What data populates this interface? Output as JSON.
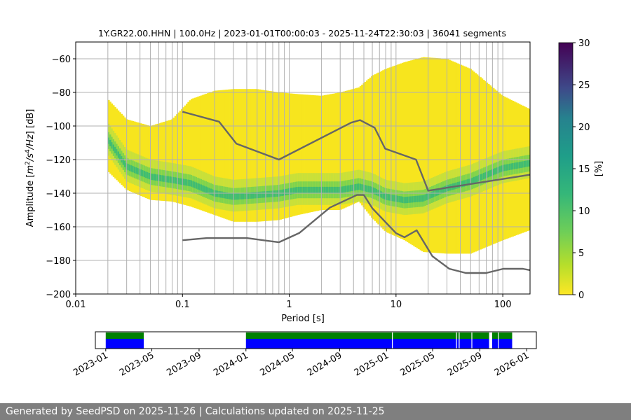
{
  "chart_data": [
    {
      "type": "heatmap",
      "title": "1Y.GR22.00.HHN | 100.0Hz | 2023-01-01T00:00:03 - 2025-11-24T22:30:03 | 36041 segments",
      "xlabel": "Period [s]",
      "ylabel_parts": [
        "Amplitude [",
        "m",
        "2",
        "/",
        "s",
        "4",
        "/",
        "Hz",
        "] [dB]"
      ],
      "xscale": "log",
      "xlim": [
        0.01,
        180
      ],
      "ylim": [
        -200,
        -50
      ],
      "x_ticks": [
        {
          "v": 0.01,
          "label": "0.01"
        },
        {
          "v": 0.1,
          "label": "0.1"
        },
        {
          "v": 1,
          "label": "1"
        },
        {
          "v": 10,
          "label": "10"
        },
        {
          "v": 100,
          "label": "100"
        }
      ],
      "y_ticks": [
        {
          "v": -60,
          "label": "−60"
        },
        {
          "v": -80,
          "label": "−80"
        },
        {
          "v": -100,
          "label": "−100"
        },
        {
          "v": -120,
          "label": "−120"
        },
        {
          "v": -140,
          "label": "−140"
        },
        {
          "v": -160,
          "label": "−160"
        },
        {
          "v": -180,
          "label": "−180"
        },
        {
          "v": -200,
          "label": "−200"
        }
      ],
      "grid": true,
      "colormap": "viridis",
      "colorbar": {
        "label": "[%]",
        "range": [
          0,
          30
        ],
        "ticks": [
          {
            "v": 0,
            "label": "0"
          },
          {
            "v": 5,
            "label": "5"
          },
          {
            "v": 10,
            "label": "10"
          },
          {
            "v": 15,
            "label": "15"
          },
          {
            "v": 20,
            "label": "20"
          },
          {
            "v": 25,
            "label": "25"
          },
          {
            "v": 30,
            "label": "30"
          }
        ]
      },
      "psd_envelope": {
        "period": [
          0.02,
          0.03,
          0.05,
          0.08,
          0.12,
          0.2,
          0.3,
          0.5,
          0.8,
          1.2,
          2,
          3,
          4.5,
          6,
          8,
          12,
          18,
          30,
          50,
          100,
          180
        ],
        "top": [
          -84,
          -96,
          -100,
          -96,
          -84,
          -79,
          -78,
          -78,
          -80,
          -81,
          -82,
          -80,
          -77,
          -70,
          -66,
          -62,
          -59,
          -60,
          -66,
          -82,
          -90
        ],
        "bottom": [
          -127,
          -138,
          -144,
          -145,
          -148,
          -153,
          -157,
          -157,
          -156,
          -153,
          -150,
          -150,
          -145,
          -155,
          -163,
          -168,
          -175,
          -176,
          -176,
          -168,
          -162
        ],
        "mode": [
          -108,
          -124,
          -130,
          -132,
          -134,
          -140,
          -142,
          -141,
          -140,
          -138,
          -138,
          -138,
          -136,
          -138,
          -142,
          -144,
          -143,
          -137,
          -133,
          -125,
          -122
        ]
      },
      "noise_models": [
        {
          "period": [
            0.1,
            0.17,
            0.22,
            0.4,
            0.8,
            1.24,
            2.4,
            4.3,
            5,
            6,
            10,
            12,
            15.6,
            21.9,
            31.6,
            45,
            70,
            101,
            154,
            180
          ],
          "values": [
            -168,
            -166.7,
            -166.7,
            -166.7,
            -169.2,
            -163.7,
            -148.6,
            -141.1,
            -141.1,
            -149,
            -163.8,
            -166.2,
            -162.1,
            -177.5,
            -185,
            -187.5,
            -187.5,
            -185,
            -185,
            -185.8
          ]
        },
        {
          "period": [
            0.1,
            0.22,
            0.32,
            0.8,
            3.8,
            4.6,
            6.3,
            7.9,
            15.4,
            20,
            180
          ],
          "values": [
            -91.5,
            -97.4,
            -110.5,
            -120,
            -98,
            -96.5,
            -101,
            -113.5,
            -120,
            -138.5,
            -129
          ]
        }
      ]
    },
    {
      "type": "timeline",
      "xlim": [
        "2022-12-05",
        "2026-01-26"
      ],
      "x_ticks": [
        {
          "date": "2023-01-01",
          "label": "2023-01"
        },
        {
          "date": "2023-05-01",
          "label": "2023-05"
        },
        {
          "date": "2023-09-01",
          "label": "2023-09"
        },
        {
          "date": "2024-01-01",
          "label": "2024-01"
        },
        {
          "date": "2024-05-01",
          "label": "2024-05"
        },
        {
          "date": "2024-09-01",
          "label": "2024-09"
        },
        {
          "date": "2025-01-01",
          "label": "2025-01"
        },
        {
          "date": "2025-05-01",
          "label": "2025-05"
        },
        {
          "date": "2025-09-01",
          "label": "2025-09"
        },
        {
          "date": "2026-01-01",
          "label": "2026-01"
        }
      ],
      "rows": [
        {
          "color": "#008000",
          "intervals": [
            [
              "2023-01-01",
              "2023-04-10"
            ],
            [
              "2024-01-01",
              "2025-09-25"
            ],
            [
              "2025-10-03",
              "2025-11-24"
            ]
          ]
        },
        {
          "color": "#0000ff",
          "intervals": [
            [
              "2023-01-01",
              "2023-04-10"
            ],
            [
              "2024-01-01",
              "2025-09-25"
            ],
            [
              "2025-10-03",
              "2025-11-24"
            ]
          ]
        }
      ],
      "gaps": [
        "2025-01-15",
        "2025-07-01",
        "2025-07-08",
        "2025-08-10",
        "2025-10-18"
      ]
    }
  ],
  "footer": {
    "text": "Generated by SeedPSD on 2025-11-26 | Calculations updated on 2025-11-25"
  }
}
